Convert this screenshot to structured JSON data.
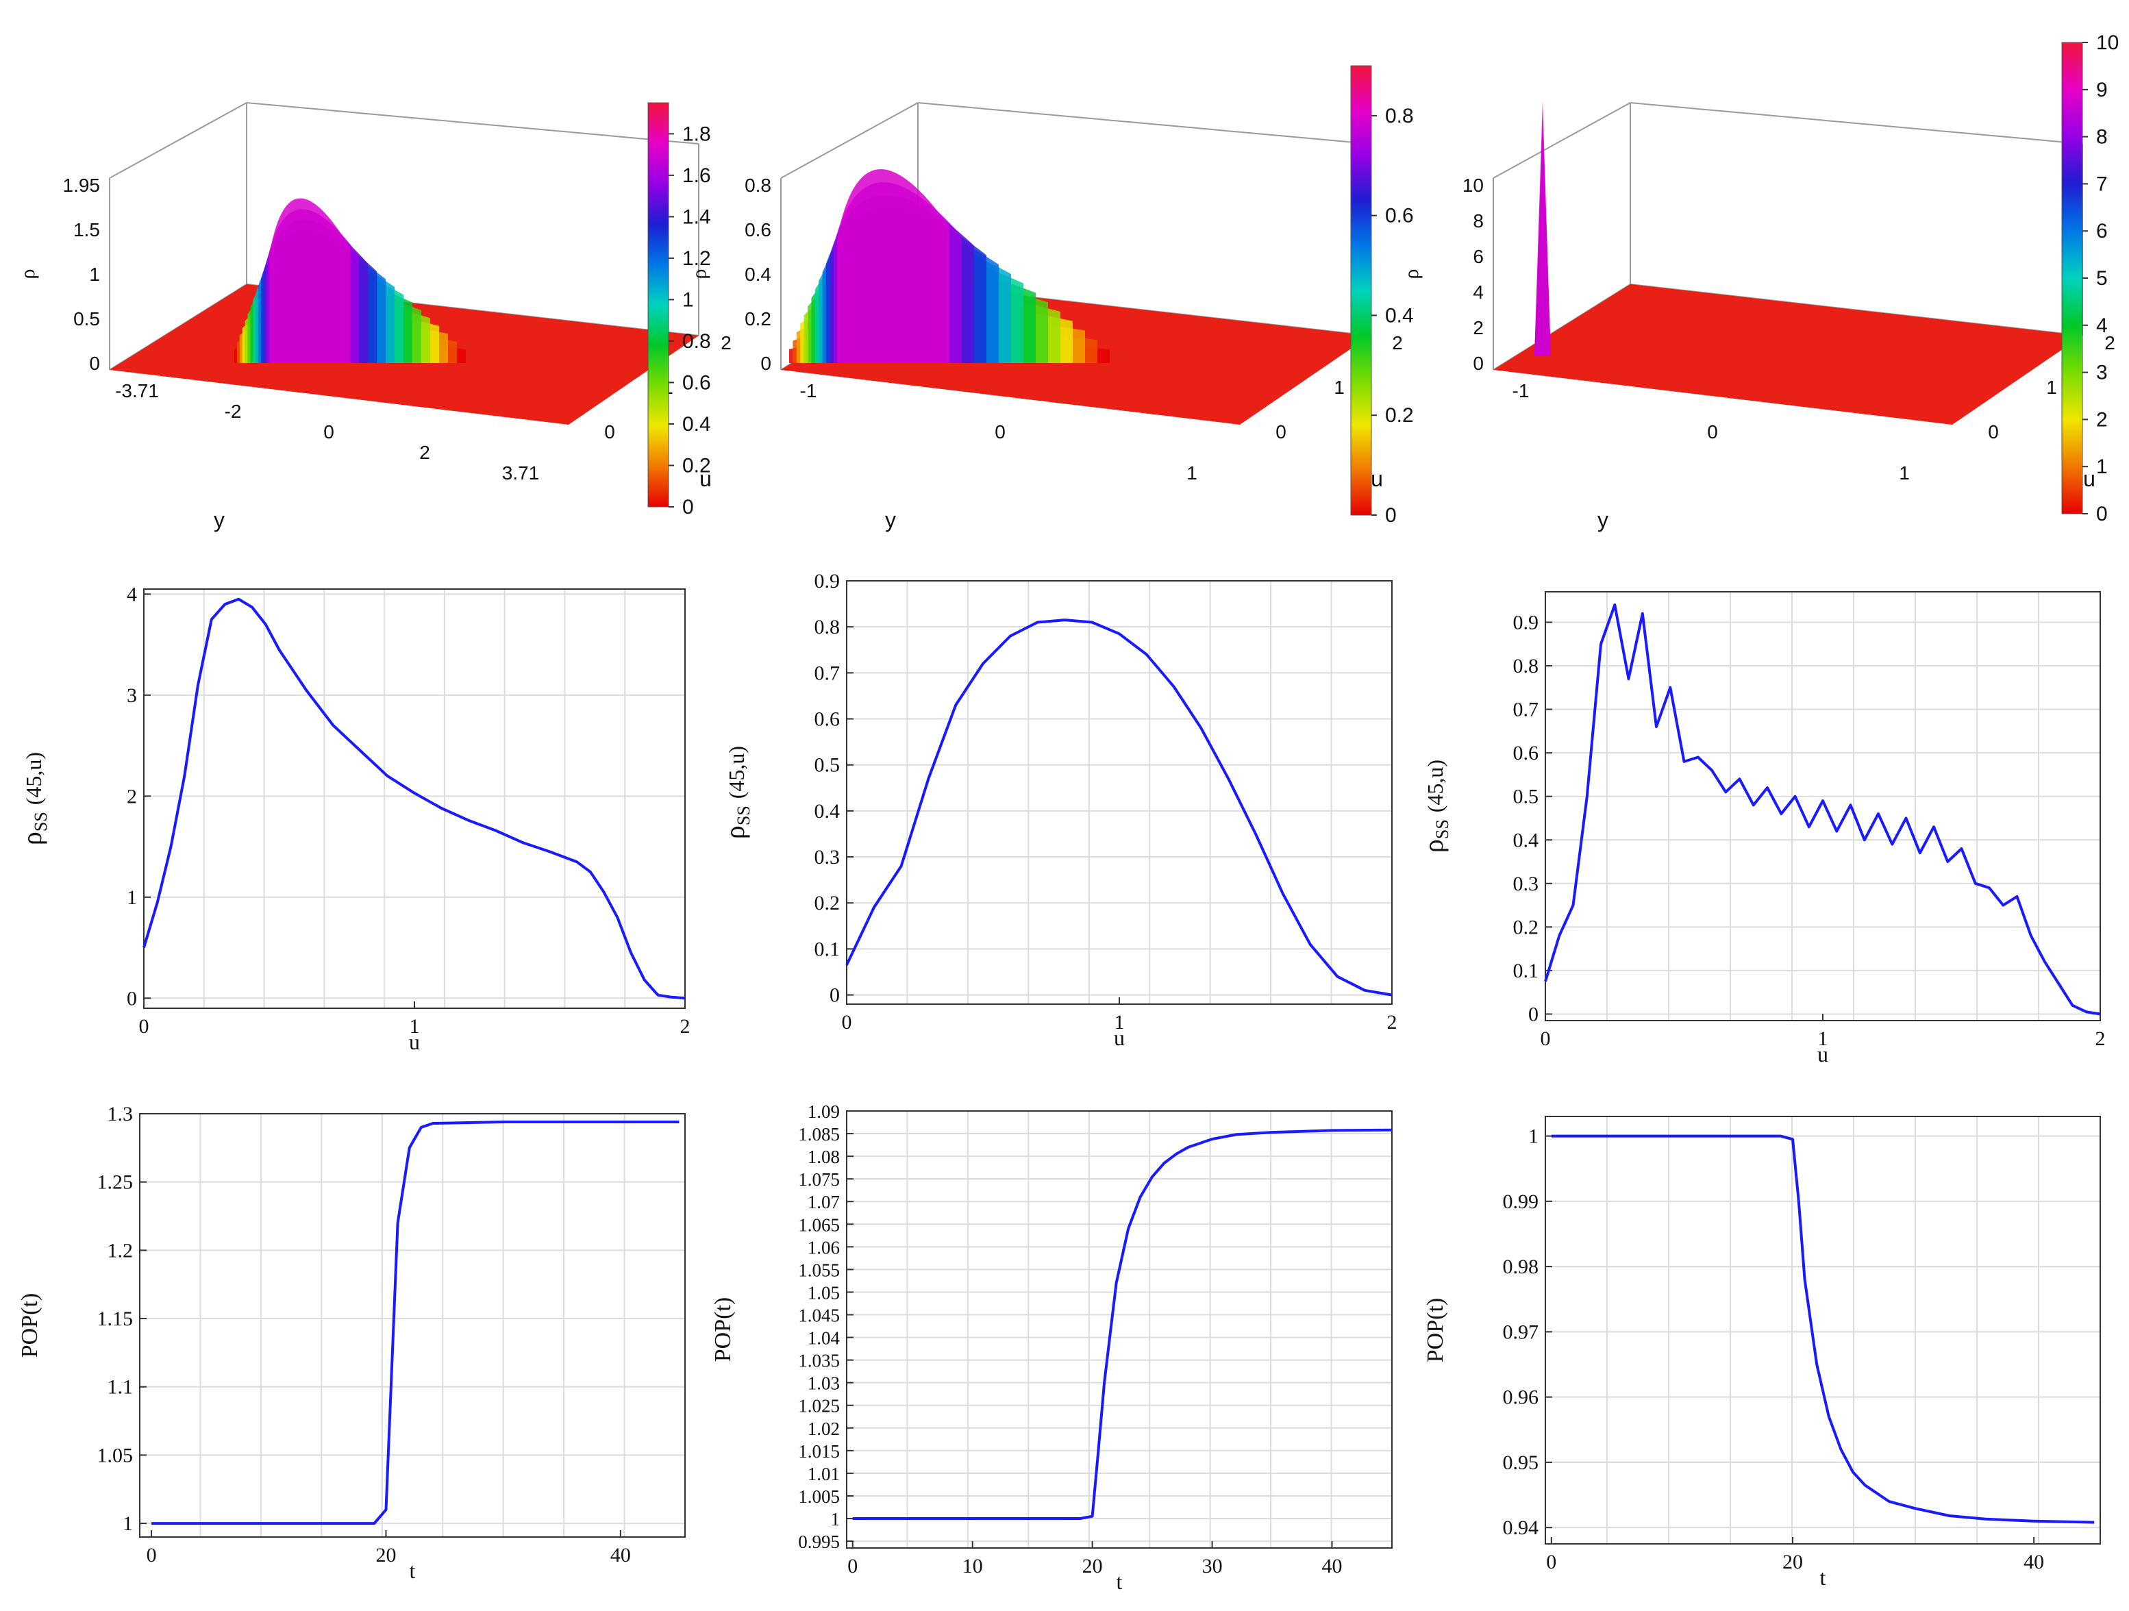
{
  "surfaces": [
    {
      "zlabel": "ρ",
      "xlabel": "y",
      "ylabel": "u",
      "zticks": [
        "0",
        "0.5",
        "1",
        "1.5",
        "1.95"
      ],
      "yticks": [
        "-3.71",
        "-2",
        "0",
        "2",
        "3.71"
      ],
      "uticks": [
        "0",
        "1",
        "2"
      ],
      "cbar": [
        "0",
        "0.2",
        "0.4",
        "0.6",
        "0.8",
        "1",
        "1.2",
        "1.4",
        "1.6",
        "1.8"
      ],
      "cmax": 1.95
    },
    {
      "zlabel": "ρ",
      "xlabel": "y",
      "ylabel": "u",
      "zticks": [
        "0",
        "0.2",
        "0.4",
        "0.6",
        "0.8"
      ],
      "yticks": [
        "-1",
        "0",
        "1"
      ],
      "uticks": [
        "0",
        "1",
        "2"
      ],
      "cbar": [
        "0",
        "0.2",
        "0.4",
        "0.6",
        "0.8"
      ],
      "cmax": 0.9
    },
    {
      "zlabel": "ρ",
      "xlabel": "y",
      "ylabel": "u",
      "zticks": [
        "0",
        "2",
        "4",
        "6",
        "8",
        "10"
      ],
      "yticks": [
        "-1",
        "0",
        "1"
      ],
      "uticks": [
        "0",
        "1",
        "2"
      ],
      "cbar": [
        "0",
        "1",
        "2",
        "3",
        "4",
        "5",
        "6",
        "7",
        "8",
        "9",
        "10"
      ],
      "cmax": 10
    }
  ],
  "chart_data": [
    {
      "type": "line",
      "xlabel": "u",
      "ylabel_main": "ρ",
      "ylabel_sub": "SS",
      "ylabel_tail": "(45,u)",
      "xlim": [
        0,
        2
      ],
      "ylim": [
        -0.1,
        4.05
      ],
      "xticks": [
        0,
        1,
        2
      ],
      "xtick_labels": [
        "0",
        "1",
        "2"
      ],
      "yticks": [
        0,
        1,
        2,
        3,
        4
      ],
      "ytick_labels": [
        "0",
        "1",
        "2",
        "3",
        "4"
      ],
      "x": [
        0,
        0.05,
        0.1,
        0.15,
        0.2,
        0.25,
        0.3,
        0.35,
        0.4,
        0.45,
        0.5,
        0.6,
        0.7,
        0.8,
        0.9,
        1.0,
        1.1,
        1.2,
        1.3,
        1.4,
        1.5,
        1.6,
        1.65,
        1.7,
        1.75,
        1.8,
        1.85,
        1.9,
        1.95,
        2.0
      ],
      "y": [
        0.5,
        0.95,
        1.5,
        2.2,
        3.1,
        3.75,
        3.9,
        3.95,
        3.87,
        3.7,
        3.45,
        3.05,
        2.7,
        2.45,
        2.2,
        2.03,
        1.88,
        1.76,
        1.66,
        1.54,
        1.45,
        1.35,
        1.25,
        1.05,
        0.8,
        0.45,
        0.18,
        0.03,
        0.01,
        0.0
      ]
    },
    {
      "type": "line",
      "xlabel": "u",
      "ylabel_main": "ρ",
      "ylabel_sub": "SS",
      "ylabel_tail": "(45,u)",
      "xlim": [
        0,
        2
      ],
      "ylim": [
        -0.02,
        0.9
      ],
      "xticks": [
        0,
        1,
        2
      ],
      "xtick_labels": [
        "0",
        "1",
        "2"
      ],
      "yticks": [
        0,
        0.1,
        0.2,
        0.3,
        0.4,
        0.5,
        0.6,
        0.7,
        0.8,
        0.9
      ],
      "ytick_labels": [
        "0",
        "0.1",
        "0.2",
        "0.3",
        "0.4",
        "0.5",
        "0.6",
        "0.7",
        "0.8",
        "0.9"
      ],
      "x": [
        0,
        0.1,
        0.2,
        0.3,
        0.4,
        0.5,
        0.6,
        0.7,
        0.8,
        0.9,
        1.0,
        1.1,
        1.2,
        1.3,
        1.4,
        1.5,
        1.6,
        1.7,
        1.8,
        1.9,
        2.0
      ],
      "y": [
        0.065,
        0.19,
        0.28,
        0.47,
        0.63,
        0.72,
        0.78,
        0.81,
        0.815,
        0.81,
        0.785,
        0.74,
        0.67,
        0.58,
        0.47,
        0.35,
        0.22,
        0.11,
        0.04,
        0.01,
        0.0
      ]
    },
    {
      "type": "line",
      "xlabel": "u",
      "ylabel_main": "ρ",
      "ylabel_sub": "SS",
      "ylabel_tail": "(45,u)",
      "xlim": [
        0,
        2
      ],
      "ylim": [
        -0.015,
        0.97
      ],
      "xticks": [
        0,
        1,
        2
      ],
      "xtick_labels": [
        "0",
        "1",
        "2"
      ],
      "yticks": [
        0,
        0.1,
        0.2,
        0.3,
        0.4,
        0.5,
        0.6,
        0.7,
        0.8,
        0.9
      ],
      "ytick_labels": [
        "0",
        "0.1",
        "0.2",
        "0.3",
        "0.4",
        "0.5",
        "0.6",
        "0.7",
        "0.8",
        "0.9"
      ],
      "x": [
        0,
        0.05,
        0.1,
        0.15,
        0.2,
        0.25,
        0.3,
        0.35,
        0.4,
        0.45,
        0.5,
        0.55,
        0.6,
        0.65,
        0.7,
        0.75,
        0.8,
        0.85,
        0.9,
        0.95,
        1.0,
        1.05,
        1.1,
        1.15,
        1.2,
        1.25,
        1.3,
        1.35,
        1.4,
        1.45,
        1.5,
        1.55,
        1.6,
        1.65,
        1.7,
        1.75,
        1.8,
        1.85,
        1.9,
        1.95,
        2.0
      ],
      "y": [
        0.075,
        0.18,
        0.25,
        0.5,
        0.85,
        0.94,
        0.77,
        0.92,
        0.66,
        0.75,
        0.58,
        0.59,
        0.56,
        0.51,
        0.54,
        0.48,
        0.52,
        0.46,
        0.5,
        0.43,
        0.49,
        0.42,
        0.48,
        0.4,
        0.46,
        0.39,
        0.45,
        0.37,
        0.43,
        0.35,
        0.38,
        0.3,
        0.29,
        0.25,
        0.27,
        0.18,
        0.12,
        0.07,
        0.02,
        0.005,
        0.0
      ]
    },
    {
      "type": "line",
      "xlabel": "t",
      "ylabel": "POP(t)",
      "xlim": [
        -1,
        45.5
      ],
      "ylim": [
        0.99,
        1.3
      ],
      "xticks": [
        0,
        20,
        40
      ],
      "xtick_labels": [
        "0",
        "20",
        "40"
      ],
      "yticks": [
        1,
        1.05,
        1.1,
        1.15,
        1.2,
        1.25,
        1.3
      ],
      "ytick_labels": [
        "1",
        "1.05",
        "1.1",
        "1.15",
        "1.2",
        "1.25",
        "1.3"
      ],
      "x": [
        0,
        5,
        10,
        15,
        19,
        20,
        21,
        22,
        23,
        24,
        30,
        40,
        45
      ],
      "y": [
        1.0,
        1.0,
        1.0,
        1.0,
        1.0,
        1.01,
        1.22,
        1.275,
        1.29,
        1.293,
        1.294,
        1.294,
        1.294
      ]
    },
    {
      "type": "line",
      "xlabel": "t",
      "ylabel": "POP(t)",
      "xlim": [
        -0.5,
        45
      ],
      "ylim": [
        0.9935,
        1.09
      ],
      "xticks": [
        0,
        10,
        20,
        30,
        40
      ],
      "xtick_labels": [
        "0",
        "10",
        "20",
        "30",
        "40"
      ],
      "yticks": [
        0.995,
        1,
        1.005,
        1.01,
        1.015,
        1.02,
        1.025,
        1.03,
        1.035,
        1.04,
        1.045,
        1.05,
        1.055,
        1.06,
        1.065,
        1.07,
        1.075,
        1.08,
        1.085,
        1.09
      ],
      "ytick_labels": [
        "0.995",
        "1",
        "1.005",
        "1.01",
        "1.015",
        "1.02",
        "1.025",
        "1.03",
        "1.035",
        "1.04",
        "1.045",
        "1.05",
        "1.055",
        "1.06",
        "1.065",
        "1.07",
        "1.075",
        "1.08",
        "1.085",
        "1.09"
      ],
      "x": [
        0,
        10,
        19,
        20,
        20.5,
        21,
        22,
        23,
        24,
        25,
        26,
        27,
        28,
        30,
        32,
        35,
        40,
        45
      ],
      "y": [
        1.0,
        1.0,
        1.0,
        1.0005,
        1.015,
        1.03,
        1.052,
        1.064,
        1.071,
        1.0755,
        1.0785,
        1.0805,
        1.082,
        1.0838,
        1.0848,
        1.0853,
        1.0857,
        1.0858
      ]
    },
    {
      "type": "line",
      "xlabel": "t",
      "ylabel": "POP(t)",
      "xlim": [
        -0.5,
        45.5
      ],
      "ylim": [
        0.9375,
        1.003
      ],
      "xticks": [
        0,
        20,
        40
      ],
      "xtick_labels": [
        "0",
        "20",
        "40"
      ],
      "yticks": [
        0.94,
        0.95,
        0.96,
        0.97,
        0.98,
        0.99,
        1
      ],
      "ytick_labels": [
        "0.94",
        "0.95",
        "0.96",
        "0.97",
        "0.98",
        "0.99",
        "1"
      ],
      "x": [
        0,
        10,
        19,
        20,
        20.5,
        21,
        22,
        23,
        24,
        25,
        26,
        28,
        30,
        33,
        36,
        40,
        45
      ],
      "y": [
        1.0,
        1.0,
        1.0,
        0.9995,
        0.99,
        0.978,
        0.965,
        0.957,
        0.952,
        0.9485,
        0.9465,
        0.944,
        0.943,
        0.9418,
        0.9413,
        0.941,
        0.9408
      ]
    }
  ]
}
